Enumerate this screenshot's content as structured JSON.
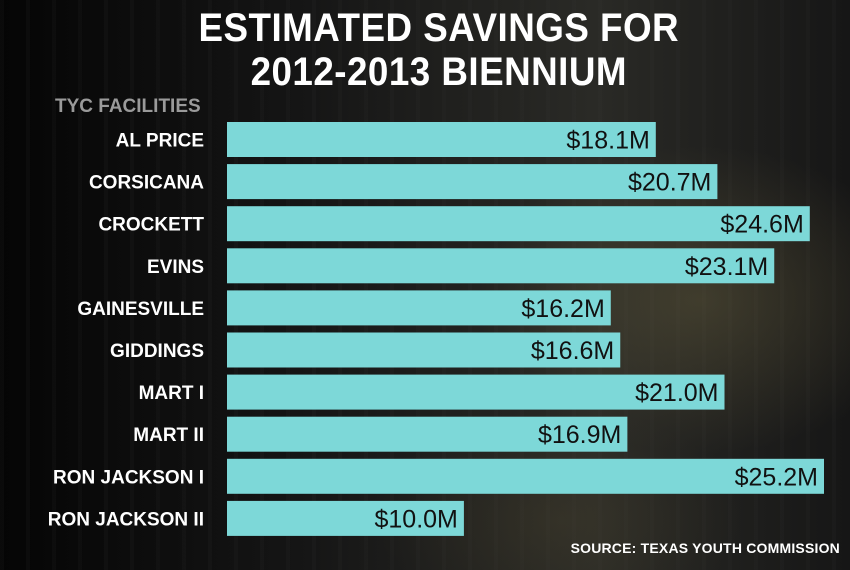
{
  "title": "ESTIMATED SAVINGS FOR\n2012-2013 BIENNIUM",
  "source": "SOURCE: TEXAS YOUTH COMMISSION",
  "colors": {
    "bar": "#7dd8d8",
    "value_text": "#111111",
    "label_text": "#ffffff",
    "axis_title": "#9a9a9a"
  },
  "chart_data": {
    "type": "bar",
    "orientation": "horizontal",
    "title": "ESTIMATED SAVINGS FOR 2012-2013 BIENNIUM",
    "ylabel": "TYC FACILITIES",
    "xlabel": "",
    "unit": "$M",
    "xlim": [
      0,
      25.2
    ],
    "grid": false,
    "categories": [
      "AL PRICE",
      "CORSICANA",
      "CROCKETT",
      "EVINS",
      "GAINESVILLE",
      "GIDDINGS",
      "MART I",
      "MART II",
      "RON JACKSON I",
      "RON JACKSON II"
    ],
    "values": [
      18.1,
      20.7,
      24.6,
      23.1,
      16.2,
      16.6,
      21.0,
      16.9,
      25.2,
      10.0
    ],
    "value_labels": [
      "$18.1M",
      "$20.7M",
      "$24.6M",
      "$23.1M",
      "$16.2M",
      "$16.6M",
      "$21.0M",
      "$16.9M",
      "$25.2M",
      "$10.0M"
    ]
  }
}
